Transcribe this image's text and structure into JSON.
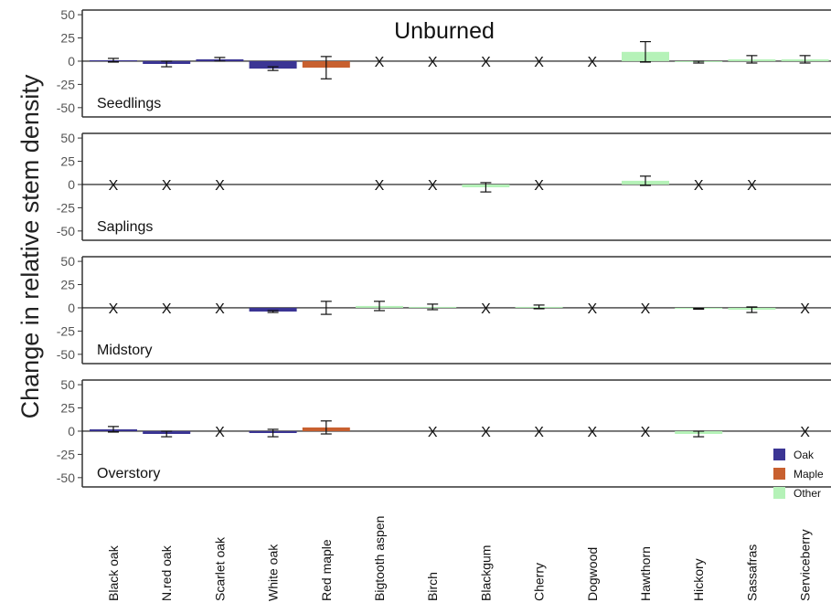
{
  "chart_data": {
    "type": "bar",
    "title": "Unburned",
    "ylabel": "Change in relative stem density",
    "ylim": [
      -60,
      55
    ],
    "yticks": [
      50,
      25,
      0,
      -25,
      -50
    ],
    "categories": [
      "Black oak",
      "N.red oak",
      "Scarlet oak",
      "White oak",
      "Red maple",
      "Bigtooth aspen",
      "Birch",
      "Blackgum",
      "Cherry",
      "Dogwood",
      "Hawthorn",
      "Hickory",
      "Sassafras",
      "Serviceberry"
    ],
    "groups": [
      "Oak",
      "Oak",
      "Oak",
      "Oak",
      "Maple",
      "Other",
      "Other",
      "Other",
      "Other",
      "Other",
      "Other",
      "Other",
      "Other",
      "Other"
    ],
    "legend": [
      {
        "name": "Oak",
        "color": "#3b3594"
      },
      {
        "name": "Maple",
        "color": "#c8602f"
      },
      {
        "name": "Other",
        "color": "#b5f2b8"
      }
    ],
    "legend_position": "bottom-right",
    "absent_marker": "X",
    "panels": [
      {
        "label": "Seedlings",
        "values": [
          1,
          -3,
          2,
          -8,
          -7,
          0,
          0,
          0,
          0,
          0,
          10,
          -1,
          2,
          2
        ],
        "errors": [
          2,
          3,
          2,
          2,
          12,
          null,
          null,
          null,
          null,
          null,
          11,
          1,
          4,
          4
        ],
        "absent": [
          false,
          false,
          false,
          false,
          false,
          true,
          true,
          true,
          true,
          true,
          false,
          false,
          false,
          false
        ]
      },
      {
        "label": "Saplings",
        "values": [
          0,
          0,
          0,
          null,
          null,
          0,
          0,
          -3,
          0,
          null,
          4,
          0,
          0,
          null
        ],
        "errors": [
          null,
          null,
          null,
          null,
          null,
          null,
          null,
          5,
          null,
          null,
          5,
          null,
          null,
          null
        ],
        "absent": [
          true,
          true,
          true,
          false,
          false,
          true,
          true,
          false,
          true,
          false,
          false,
          true,
          true,
          false
        ]
      },
      {
        "label": "Midstory",
        "values": [
          0,
          0,
          0,
          -4,
          0,
          2,
          1,
          0,
          1,
          0,
          0,
          -1,
          -2,
          0
        ],
        "errors": [
          null,
          null,
          null,
          1,
          7,
          5,
          3,
          null,
          2,
          null,
          null,
          0.5,
          3,
          null
        ],
        "absent": [
          true,
          true,
          true,
          false,
          false,
          false,
          false,
          true,
          false,
          true,
          true,
          false,
          false,
          true
        ]
      },
      {
        "label": "Overstory",
        "values": [
          2,
          -3,
          0,
          -2,
          4,
          null,
          0,
          0,
          0,
          0,
          0,
          -3,
          null,
          0
        ],
        "errors": [
          3,
          3,
          null,
          4,
          7,
          null,
          null,
          null,
          null,
          null,
          null,
          3,
          null,
          null
        ],
        "absent": [
          false,
          false,
          true,
          false,
          false,
          false,
          true,
          true,
          true,
          true,
          true,
          false,
          false,
          true
        ]
      }
    ]
  }
}
